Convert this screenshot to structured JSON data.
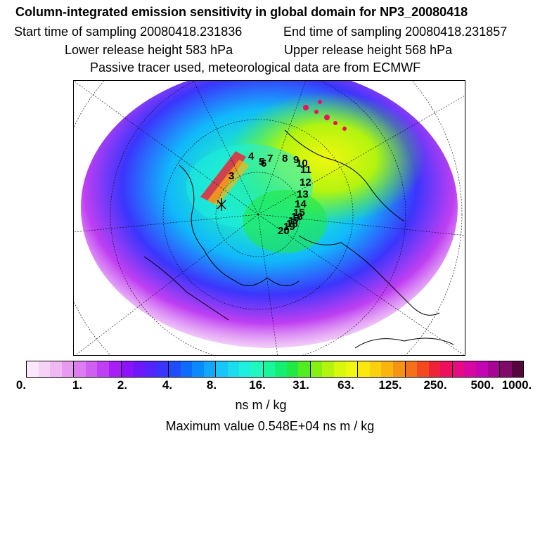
{
  "header": {
    "title": "Column-integrated emission sensitivity in global domain for NP3_20080418",
    "start_time": "Start time of sampling 20080418.231836",
    "end_time": "End time of sampling 20080418.231857",
    "lower_release": "Lower release height  583 hPa",
    "upper_release": "Upper release height  568 hPa",
    "tracer_info": "Passive tracer used, meteorological data are from ECMWF"
  },
  "map": {
    "trajectory_labels": [
      "3",
      "4",
      "5",
      "6",
      "7",
      "8",
      "9",
      "10",
      "11",
      "12",
      "13",
      "14",
      "15",
      "16",
      "17",
      "18",
      "19",
      "20"
    ]
  },
  "colorbar": {
    "colors": [
      "#fbe9fb",
      "#f6d2f6",
      "#f0b8f3",
      "#e89af0",
      "#dc7cf0",
      "#cf5ff0",
      "#bf3ff2",
      "#a91ef6",
      "#8c14fa",
      "#6f18fb",
      "#5324fb",
      "#3b35fc",
      "#1f4dfc",
      "#0d6bfd",
      "#0a8afd",
      "#11a8fc",
      "#18c5f8",
      "#1adcec",
      "#1fefdf",
      "#20f8c0",
      "#18f59a",
      "#14ef72",
      "#22e845",
      "#52ec20",
      "#86f010",
      "#b3f40f",
      "#d8f80e",
      "#f0f80f",
      "#fbe80f",
      "#fbd00e",
      "#f9b410",
      "#f79312",
      "#f5701a",
      "#f2491f",
      "#ef2338",
      "#ed0f5e",
      "#e60a84",
      "#d708a2",
      "#c206b3",
      "#a70694",
      "#7f0a6a",
      "#55063f"
    ],
    "tick_labels": [
      "0.",
      "1.",
      "2.",
      "4.",
      "8.",
      "16.",
      "31.",
      "63.",
      "125.",
      "250.",
      "500.",
      "1000."
    ],
    "units": "ns m / kg"
  },
  "footer": {
    "max_value": "Maximum value  0.548E+04 ns m / kg"
  }
}
